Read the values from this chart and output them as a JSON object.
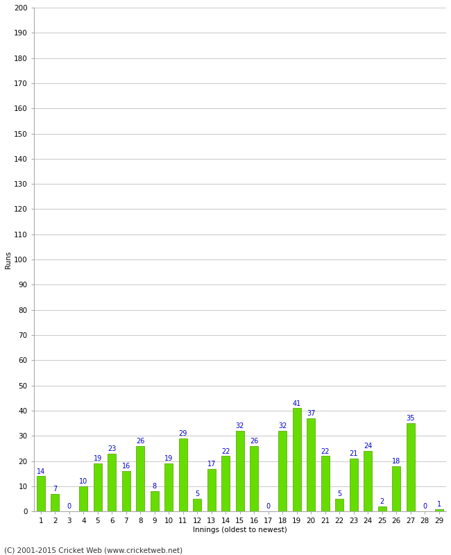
{
  "innings": [
    1,
    2,
    3,
    4,
    5,
    6,
    7,
    8,
    9,
    10,
    11,
    12,
    13,
    14,
    15,
    16,
    17,
    18,
    19,
    20,
    21,
    22,
    23,
    24,
    25,
    26,
    27,
    28,
    29
  ],
  "runs": [
    14,
    7,
    0,
    10,
    19,
    23,
    16,
    26,
    8,
    19,
    29,
    5,
    17,
    22,
    32,
    26,
    0,
    32,
    41,
    37,
    22,
    5,
    21,
    24,
    2,
    18,
    35,
    0,
    1
  ],
  "bar_color": "#66dd00",
  "bar_edge_color": "#559900",
  "label_color": "#0000cc",
  "ylabel": "Runs",
  "xlabel": "Innings (oldest to newest)",
  "footer": "(C) 2001-2015 Cricket Web (www.cricketweb.net)",
  "ylim": [
    0,
    200
  ],
  "yticks": [
    0,
    10,
    20,
    30,
    40,
    50,
    60,
    70,
    80,
    90,
    100,
    110,
    120,
    130,
    140,
    150,
    160,
    170,
    180,
    190,
    200
  ],
  "background_color": "#ffffff",
  "grid_color": "#cccccc",
  "label_fontsize": 7,
  "footer_fontsize": 7.5,
  "ylabel_fontsize": 7.5,
  "xlabel_fontsize": 7.5,
  "tick_fontsize": 7.5,
  "bar_width": 0.6
}
